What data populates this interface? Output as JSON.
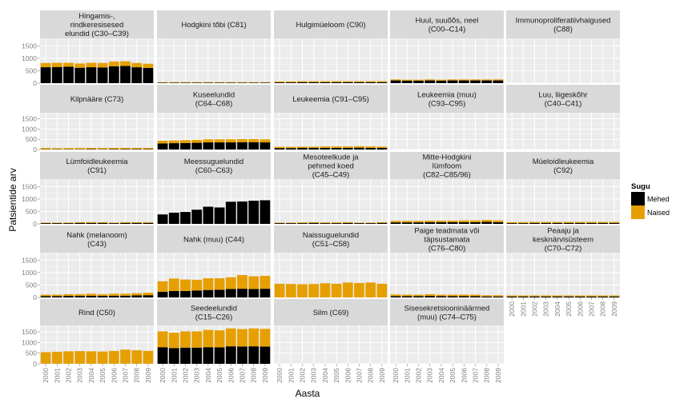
{
  "chart_data": {
    "type": "bar",
    "stacked": true,
    "facet_layout": "wrap-5-columns",
    "xlabel": "Aasta",
    "ylabel": "Patsientide arv",
    "x": [
      "2000",
      "2001",
      "2002",
      "2003",
      "2004",
      "2005",
      "2006",
      "2007",
      "2008",
      "2009"
    ],
    "ylim": [
      0,
      1800
    ],
    "yticks": [
      0,
      500,
      1000,
      1500
    ],
    "grid": true,
    "legend": {
      "title": "Sugu",
      "position": "right",
      "items": [
        {
          "name": "Mehed",
          "color": "#000000"
        },
        {
          "name": "Naised",
          "color": "#E69F00"
        }
      ]
    },
    "panels": [
      {
        "title": "Hingamis-,\nrindkeresisesed\nelundid (C30–C39)",
        "mehed": [
          640,
          650,
          660,
          620,
          640,
          630,
          680,
          690,
          640,
          610
        ],
        "naised": [
          170,
          170,
          160,
          170,
          180,
          180,
          190,
          190,
          170,
          170
        ]
      },
      {
        "title": "Hodgkini tõbi (C81)",
        "mehed": [
          20,
          20,
          20,
          20,
          20,
          20,
          20,
          20,
          20,
          20
        ],
        "naised": [
          20,
          20,
          20,
          20,
          20,
          20,
          20,
          20,
          20,
          20
        ]
      },
      {
        "title": "Hulgimüeloom (C90)",
        "mehed": [
          30,
          30,
          40,
          40,
          40,
          40,
          40,
          40,
          40,
          40
        ],
        "naised": [
          40,
          40,
          40,
          40,
          40,
          40,
          40,
          40,
          40,
          40
        ]
      },
      {
        "title": "Huul, suuõõs, neel\n(C00–C14)",
        "mehed": [
          110,
          100,
          100,
          110,
          100,
          110,
          110,
          110,
          110,
          110
        ],
        "naised": [
          40,
          40,
          40,
          40,
          40,
          40,
          40,
          40,
          40,
          40
        ]
      },
      {
        "title": "Immunoproliferatiivhaigused\n(C88)",
        "mehed": [
          0,
          0,
          0,
          0,
          0,
          0,
          0,
          0,
          0,
          0
        ],
        "naised": [
          0,
          0,
          0,
          0,
          0,
          0,
          0,
          0,
          0,
          0
        ]
      },
      {
        "title": "Kilpnääre (C73)",
        "mehed": [
          15,
          15,
          15,
          15,
          20,
          15,
          20,
          20,
          20,
          20
        ],
        "naised": [
          60,
          50,
          55,
          55,
          60,
          60,
          60,
          60,
          60,
          60
        ]
      },
      {
        "title": "Kuseelundid\n(C64–C68)",
        "mehed": [
          300,
          310,
          320,
          330,
          350,
          350,
          350,
          360,
          360,
          350
        ],
        "naised": [
          130,
          130,
          140,
          140,
          150,
          150,
          150,
          150,
          150,
          150
        ]
      },
      {
        "title": "Leukeemia (C91–C95)",
        "mehed": [
          70,
          70,
          80,
          80,
          80,
          80,
          80,
          90,
          80,
          80
        ],
        "naised": [
          60,
          60,
          60,
          60,
          70,
          70,
          70,
          70,
          70,
          60
        ]
      },
      {
        "title": "Leukeemia (muu)\n(C93–C95)",
        "mehed": [
          0,
          0,
          0,
          0,
          0,
          0,
          0,
          0,
          0,
          0
        ],
        "naised": [
          0,
          0,
          0,
          0,
          0,
          0,
          0,
          0,
          0,
          0
        ]
      },
      {
        "title": "Luu, liigeskõhr\n(C40–C41)",
        "mehed": [
          0,
          0,
          0,
          0,
          0,
          0,
          0,
          0,
          0,
          0
        ],
        "naised": [
          0,
          0,
          0,
          0,
          0,
          0,
          0,
          0,
          0,
          0
        ]
      },
      {
        "title": "Lümfoidleukeemia\n(C91)",
        "mehed": [
          30,
          30,
          30,
          40,
          40,
          40,
          30,
          40,
          40,
          40
        ],
        "naised": [
          20,
          20,
          20,
          30,
          30,
          30,
          20,
          30,
          30,
          30
        ]
      },
      {
        "title": "Meessuguelundid\n(C60–C63)",
        "mehed": [
          380,
          450,
          480,
          570,
          690,
          660,
          890,
          900,
          930,
          950
        ],
        "naised": [
          0,
          0,
          0,
          0,
          0,
          0,
          0,
          0,
          0,
          0
        ]
      },
      {
        "title": "Mesoteelkude ja\npehmed koed\n(C45–C49)",
        "mehed": [
          30,
          30,
          30,
          40,
          30,
          30,
          40,
          30,
          30,
          40
        ],
        "naised": [
          20,
          20,
          30,
          30,
          30,
          30,
          30,
          20,
          20,
          30
        ]
      },
      {
        "title": "Mitte-Hodgkini\nlümfoom\n(C82–C85/96)",
        "mehed": [
          60,
          60,
          60,
          70,
          70,
          70,
          70,
          70,
          80,
          70
        ],
        "naised": [
          60,
          60,
          60,
          60,
          60,
          60,
          70,
          70,
          80,
          70
        ]
      },
      {
        "title": "Müeloidleukeemia\n(C92)",
        "mehed": [
          30,
          30,
          40,
          40,
          40,
          40,
          40,
          40,
          40,
          40
        ],
        "naised": [
          40,
          40,
          40,
          40,
          40,
          40,
          40,
          40,
          40,
          40
        ]
      },
      {
        "title": "Nahk (melanoom)\n(C43)",
        "mehed": [
          50,
          50,
          60,
          60,
          70,
          60,
          70,
          70,
          80,
          90
        ],
        "naised": [
          60,
          60,
          70,
          70,
          80,
          70,
          80,
          80,
          90,
          100
        ]
      },
      {
        "title": "Nahk (muu) (C44)",
        "mehed": [
          230,
          260,
          260,
          280,
          300,
          310,
          340,
          350,
          340,
          350
        ],
        "naised": [
          420,
          500,
          460,
          430,
          470,
          460,
          470,
          550,
          510,
          520
        ]
      },
      {
        "title": "Naissuguelundid\n(C51–C58)",
        "mehed": [
          0,
          0,
          0,
          0,
          0,
          0,
          0,
          0,
          0,
          0
        ],
        "naised": [
          550,
          540,
          530,
          540,
          570,
          550,
          600,
          580,
          600,
          550
        ]
      },
      {
        "title": "Paige teadmata või\ntäpsustamata\n(C76–C80)",
        "mehed": [
          50,
          50,
          50,
          60,
          50,
          50,
          50,
          50,
          40,
          40
        ],
        "naised": [
          70,
          60,
          60,
          70,
          60,
          60,
          60,
          60,
          50,
          50
        ]
      },
      {
        "title": "Peaaju ja\nkesknärvisüsteem\n(C70–C72)",
        "mehed": [
          40,
          40,
          40,
          40,
          40,
          40,
          40,
          40,
          40,
          40
        ],
        "naised": [
          40,
          40,
          40,
          40,
          40,
          40,
          40,
          40,
          40,
          40
        ]
      },
      {
        "title": "Rind (C50)",
        "mehed": [
          5,
          5,
          5,
          5,
          5,
          5,
          5,
          5,
          5,
          5
        ],
        "naised": [
          540,
          560,
          580,
          590,
          580,
          570,
          600,
          660,
          630,
          600
        ]
      },
      {
        "title": "Seedeelundid\n(C15–C26)",
        "mehed": [
          780,
          740,
          760,
          760,
          780,
          770,
          820,
          810,
          820,
          810
        ],
        "naised": [
          740,
          720,
          760,
          760,
          810,
          800,
          840,
          820,
          840,
          830
        ]
      },
      {
        "title": "Silm (C69)",
        "mehed": [
          0,
          0,
          0,
          0,
          0,
          0,
          0,
          0,
          0,
          0
        ],
        "naised": [
          0,
          0,
          0,
          0,
          0,
          0,
          0,
          0,
          0,
          0
        ]
      },
      {
        "title": "Sisesekretsiooninäärmed\n(muu) (C74–C75)",
        "mehed": [
          0,
          0,
          0,
          0,
          0,
          0,
          0,
          0,
          0,
          0
        ],
        "naised": [
          0,
          0,
          0,
          0,
          0,
          0,
          0,
          0,
          0,
          0
        ]
      }
    ]
  }
}
